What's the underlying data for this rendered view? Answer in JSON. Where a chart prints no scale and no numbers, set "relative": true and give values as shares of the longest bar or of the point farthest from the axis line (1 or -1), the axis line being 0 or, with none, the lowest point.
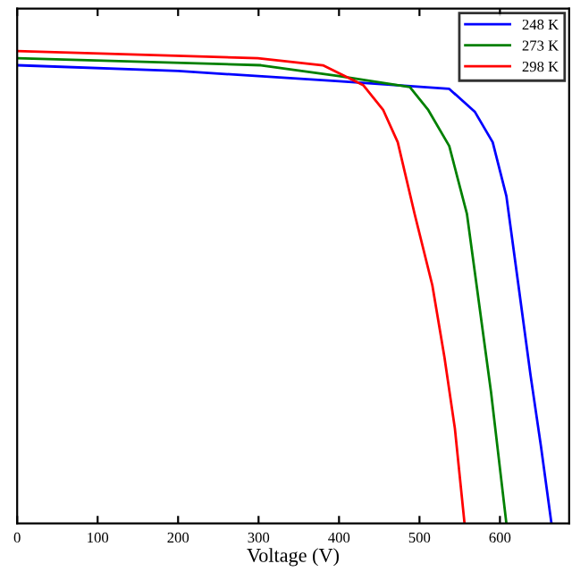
{
  "chart_data": {
    "type": "line",
    "xlabel": "Voltage (V)",
    "relative": true,
    "xlim": [
      0,
      686
    ],
    "xticks": [
      0,
      100,
      200,
      300,
      400,
      500,
      600
    ],
    "legend": "top right",
    "grid": false,
    "marker": "none",
    "line_style": "solid",
    "series": [
      {
        "name": "248 K",
        "color": "#0000ff",
        "x": [
          0,
          200,
          400,
          537,
          569,
          591,
          608,
          623,
          638,
          651,
          664
        ],
        "values": [
          0.97,
          0.958,
          0.936,
          0.92,
          0.871,
          0.807,
          0.693,
          0.504,
          0.314,
          0.163,
          0
        ]
      },
      {
        "name": "273 K",
        "color": "#008000",
        "x": [
          0,
          303,
          400,
          488,
          511,
          537,
          559,
          571,
          589,
          608
        ],
        "values": [
          0.985,
          0.97,
          0.947,
          0.924,
          0.875,
          0.799,
          0.655,
          0.504,
          0.277,
          0
        ]
      },
      {
        "name": "298 K",
        "color": "#ff0000",
        "x": [
          0,
          299,
          380,
          430,
          455,
          473,
          494,
          516,
          531,
          544,
          556
        ],
        "values": [
          1.0,
          0.985,
          0.97,
          0.928,
          0.875,
          0.807,
          0.655,
          0.504,
          0.352,
          0.201,
          0
        ]
      }
    ]
  }
}
